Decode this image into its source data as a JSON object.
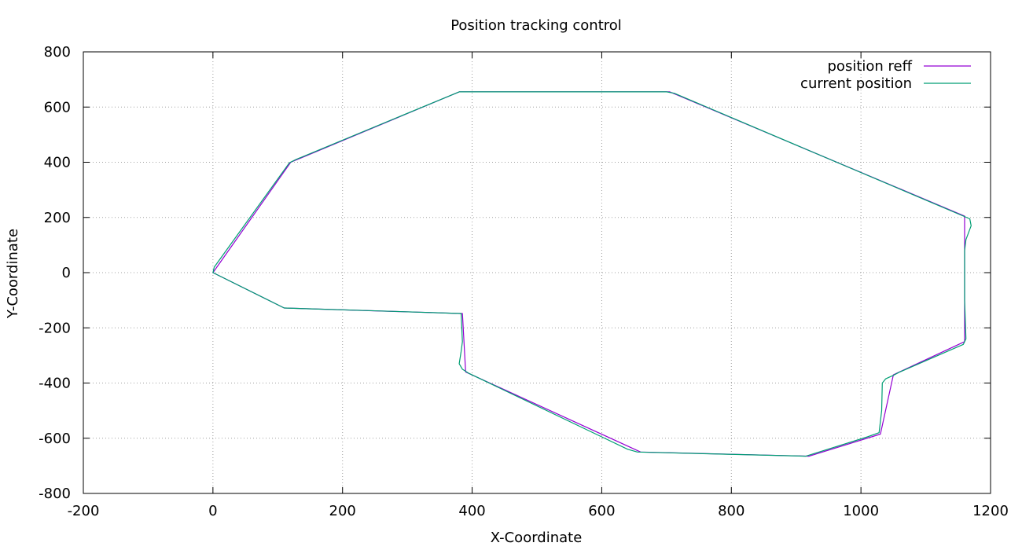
{
  "chart_data": {
    "type": "line",
    "title": "Position tracking control",
    "xlabel": "X-Coordinate",
    "ylabel": "Y-Coordinate",
    "xlim": [
      -200,
      1200
    ],
    "ylim": [
      -800,
      800
    ],
    "xticks": [
      -200,
      0,
      200,
      400,
      600,
      800,
      1000,
      1200
    ],
    "yticks": [
      -800,
      -600,
      -400,
      -200,
      0,
      200,
      400,
      600,
      800
    ],
    "grid": true,
    "legend_position": "top-right",
    "series": [
      {
        "name": "position reff",
        "color": "#9400d3",
        "x": [
          0,
          120,
          380,
          705,
          1160,
          1160,
          1160,
          1160,
          1160,
          1050,
          1030,
          920,
          660,
          390,
          385,
          382,
          110,
          0
        ],
        "y": [
          0,
          400,
          655,
          655,
          205,
          80,
          80,
          -180,
          -250,
          -370,
          -585,
          -665,
          -650,
          -360,
          -148,
          -148,
          -128,
          0
        ]
      },
      {
        "name": "current position",
        "color": "#009e73",
        "x": [
          0,
          2,
          118,
          128,
          380,
          700,
          712,
          1158,
          1168,
          1170,
          1162,
          1160,
          1160,
          1162,
          1158,
          1060,
          1050,
          1038,
          1033,
          1032,
          1028,
          1010,
          915,
          655,
          640,
          395,
          385,
          380,
          383,
          385,
          383,
          110,
          0
        ],
        "y": [
          0,
          20,
          398,
          410,
          655,
          655,
          650,
          205,
          195,
          170,
          120,
          80,
          -100,
          -240,
          -260,
          -360,
          -372,
          -385,
          -400,
          -500,
          -580,
          -595,
          -665,
          -650,
          -640,
          -365,
          -350,
          -330,
          -285,
          -250,
          -148,
          -128,
          0
        ]
      }
    ]
  }
}
